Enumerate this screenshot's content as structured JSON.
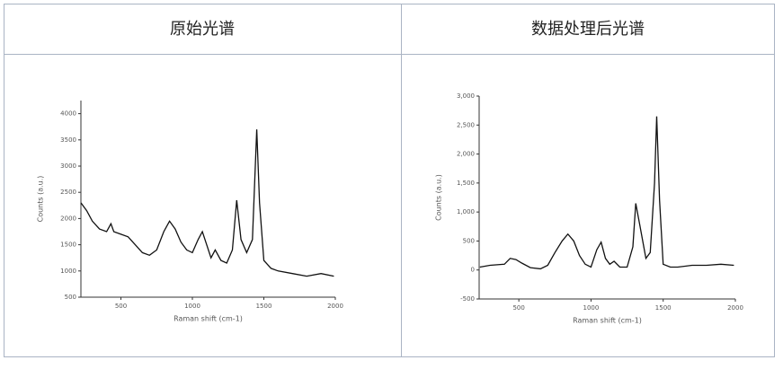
{
  "table": {
    "headers": [
      "原始光谱",
      "数据处理后光谱"
    ]
  },
  "chart_data": [
    {
      "type": "line",
      "xlabel": "Raman shift (cm-1)",
      "ylabel": "Counts (a.u.)",
      "color": "#111111",
      "xlim": [
        220,
        2000
      ],
      "ylim": [
        500,
        4250
      ],
      "xticks": [
        500,
        1000,
        1500,
        2000
      ],
      "yticks": [
        500,
        1000,
        1500,
        2000,
        2500,
        3000,
        3500,
        4000
      ],
      "x": [
        220,
        260,
        300,
        350,
        400,
        430,
        450,
        500,
        550,
        600,
        650,
        700,
        750,
        800,
        840,
        880,
        920,
        960,
        1000,
        1040,
        1070,
        1100,
        1130,
        1160,
        1200,
        1240,
        1280,
        1310,
        1340,
        1380,
        1420,
        1450,
        1470,
        1500,
        1550,
        1600,
        1700,
        1800,
        1900,
        1990
      ],
      "values": [
        2300,
        2150,
        1950,
        1800,
        1750,
        1900,
        1750,
        1700,
        1650,
        1500,
        1350,
        1300,
        1400,
        1750,
        1950,
        1800,
        1550,
        1400,
        1350,
        1600,
        1750,
        1500,
        1250,
        1400,
        1200,
        1150,
        1400,
        2350,
        1600,
        1350,
        1600,
        3700,
        2300,
        1200,
        1050,
        1000,
        950,
        900,
        950,
        900
      ]
    },
    {
      "type": "line",
      "xlabel": "Raman shift (cm-1)",
      "ylabel": "Counts (a.u.)",
      "color": "#111111",
      "xlim": [
        225,
        2000
      ],
      "ylim": [
        -500,
        3000
      ],
      "xticks": [
        500,
        1000,
        1500,
        2000
      ],
      "yticks": [
        {
          "value": -500,
          "label": "-500"
        },
        0,
        500,
        {
          "value": 1000,
          "label": "1,000"
        },
        {
          "value": 1500,
          "label": "1,500"
        },
        {
          "value": 2000,
          "label": "2,000"
        },
        {
          "value": 2500,
          "label": "2,500"
        },
        {
          "value": 3000,
          "label": "3,000"
        }
      ],
      "x": [
        230,
        300,
        400,
        440,
        480,
        520,
        580,
        650,
        700,
        750,
        800,
        840,
        880,
        920,
        960,
        1000,
        1040,
        1070,
        1100,
        1130,
        1160,
        1200,
        1250,
        1290,
        1310,
        1340,
        1380,
        1410,
        1440,
        1455,
        1475,
        1500,
        1550,
        1600,
        1700,
        1800,
        1900,
        1990
      ],
      "values": [
        50,
        80,
        100,
        200,
        180,
        120,
        40,
        20,
        80,
        300,
        500,
        620,
        500,
        250,
        100,
        50,
        350,
        480,
        200,
        100,
        150,
        50,
        50,
        400,
        1150,
        750,
        200,
        300,
        1500,
        2650,
        1200,
        100,
        50,
        50,
        80,
        80,
        100,
        80
      ]
    }
  ]
}
